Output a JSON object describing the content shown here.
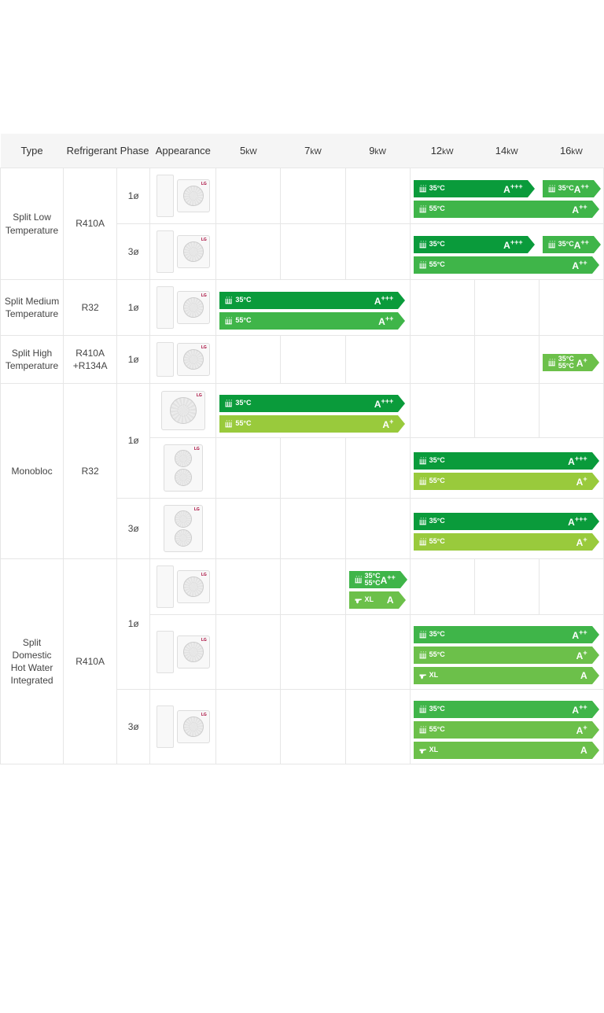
{
  "colors": {
    "header_bg": "#f5f5f5",
    "border": "#e6e6e6",
    "text": "#333333",
    "dark_green": "#0a9b3b",
    "mid_green": "#3fb549",
    "light_green": "#6cc04a",
    "lime": "#99ca3c",
    "lg_logo": "#a50034"
  },
  "headers": {
    "type": "Type",
    "refrigerant": "Refrigerant",
    "phase": "Phase",
    "appearance": "Appearance",
    "kw": [
      "5",
      "7",
      "9",
      "12",
      "14",
      "16"
    ],
    "kw_unit": "kW"
  },
  "types": {
    "split_low": "Split Low Temperature",
    "split_med": "Split Medium Temperature",
    "split_high": "Split High Temperature",
    "monobloc": "Monobloc",
    "split_dhw": "Split Domestic Hot Water Integrated"
  },
  "refrigerants": {
    "r410a": "R410A",
    "r32": "R32",
    "r410a_r134a": "R410A +R134A"
  },
  "phases": {
    "p1": "1ø",
    "p3": "3ø"
  },
  "rows": [
    {
      "id": "r1",
      "type_key": "split_low",
      "ref_key": "r410a",
      "phase_key": "p1",
      "type_rowspan": 2,
      "ref_rowspan": 2,
      "appearance": {
        "indoor": true,
        "outdoor": "normal"
      },
      "bars": [
        {
          "start": 4,
          "span": 2,
          "temps": [
            "35°C"
          ],
          "rating": "A+++",
          "color": "dark_green",
          "icon": "radiator"
        },
        {
          "start": 6,
          "span": 1,
          "temps": [
            "35°C"
          ],
          "rating": "A++",
          "color": "mid_green",
          "icon": "radiator"
        },
        {
          "start": 4,
          "span": 3,
          "temps": [
            "55°C"
          ],
          "rating": "A++",
          "color": "mid_green",
          "icon": "radiator"
        }
      ]
    },
    {
      "id": "r2",
      "phase_key": "p3",
      "appearance": {
        "indoor": true,
        "outdoor": "normal"
      },
      "bars": [
        {
          "start": 4,
          "span": 2,
          "temps": [
            "35°C"
          ],
          "rating": "A+++",
          "color": "dark_green",
          "icon": "radiator"
        },
        {
          "start": 6,
          "span": 1,
          "temps": [
            "35°C"
          ],
          "rating": "A++",
          "color": "mid_green",
          "icon": "radiator"
        },
        {
          "start": 4,
          "span": 3,
          "temps": [
            "55°C"
          ],
          "rating": "A++",
          "color": "mid_green",
          "icon": "radiator"
        }
      ]
    },
    {
      "id": "r3",
      "type_key": "split_med",
      "ref_key": "r32",
      "phase_key": "p1",
      "appearance": {
        "indoor": true,
        "outdoor": "normal"
      },
      "bars": [
        {
          "start": 1,
          "span": 3,
          "temps": [
            "35°C"
          ],
          "rating": "A+++",
          "color": "dark_green",
          "icon": "radiator"
        },
        {
          "start": 1,
          "span": 3,
          "temps": [
            "55°C"
          ],
          "rating": "A++",
          "color": "mid_green",
          "icon": "radiator"
        }
      ]
    },
    {
      "id": "r4",
      "type_key": "split_high",
      "ref_key": "r410a_r134a",
      "phase_key": "p1",
      "appearance": {
        "indoor": true,
        "indoor_short": true,
        "outdoor": "normal"
      },
      "bars": [
        {
          "start": 6,
          "span": 1,
          "temps": [
            "35°C",
            "55°C"
          ],
          "rating": "A+",
          "color": "light_green",
          "icon": "radiator"
        }
      ]
    },
    {
      "id": "r5",
      "type_key": "monobloc",
      "ref_key": "r32",
      "phase_key": "p1",
      "type_rowspan": 3,
      "ref_rowspan": 3,
      "phase_rowspan": 2,
      "appearance": {
        "outdoor": "big"
      },
      "bars": [
        {
          "start": 1,
          "span": 3,
          "temps": [
            "35°C"
          ],
          "rating": "A+++",
          "color": "dark_green",
          "icon": "radiator"
        },
        {
          "start": 1,
          "span": 3,
          "temps": [
            "55°C"
          ],
          "rating": "A+",
          "color": "lime",
          "icon": "radiator"
        }
      ]
    },
    {
      "id": "r6",
      "appearance": {
        "outdoor": "double"
      },
      "bars": [
        {
          "start": 4,
          "span": 3,
          "temps": [
            "35°C"
          ],
          "rating": "A+++",
          "color": "dark_green",
          "icon": "radiator"
        },
        {
          "start": 4,
          "span": 3,
          "temps": [
            "55°C"
          ],
          "rating": "A+",
          "color": "lime",
          "icon": "radiator"
        }
      ]
    },
    {
      "id": "r7",
      "phase_key": "p3",
      "appearance": {
        "outdoor": "double"
      },
      "bars": [
        {
          "start": 4,
          "span": 3,
          "temps": [
            "35°C"
          ],
          "rating": "A+++",
          "color": "dark_green",
          "icon": "radiator"
        },
        {
          "start": 4,
          "span": 3,
          "temps": [
            "55°C"
          ],
          "rating": "A+",
          "color": "lime",
          "icon": "radiator"
        }
      ]
    },
    {
      "id": "r8",
      "type_key": "split_dhw",
      "ref_key": "r410a",
      "phase_key": "p1",
      "type_rowspan": 3,
      "ref_rowspan": 3,
      "phase_rowspan": 2,
      "appearance": {
        "indoor": true,
        "outdoor": "normal"
      },
      "bars": [
        {
          "start": 3,
          "span": 1,
          "temps": [
            "35°C",
            "55°C"
          ],
          "rating": "A++",
          "color": "mid_green",
          "icon": "radiator"
        },
        {
          "start": 3,
          "span": 1,
          "temps": [
            "XL"
          ],
          "rating": "A",
          "color": "light_green",
          "icon": "tap"
        }
      ]
    },
    {
      "id": "r9",
      "appearance": {
        "indoor": true,
        "outdoor": "normal"
      },
      "bars": [
        {
          "start": 4,
          "span": 3,
          "temps": [
            "35°C"
          ],
          "rating": "A++",
          "color": "mid_green",
          "icon": "radiator"
        },
        {
          "start": 4,
          "span": 3,
          "temps": [
            "55°C"
          ],
          "rating": "A+",
          "color": "light_green",
          "icon": "radiator"
        },
        {
          "start": 4,
          "span": 3,
          "temps": [
            "XL"
          ],
          "rating": "A",
          "color": "light_green",
          "icon": "tap"
        }
      ]
    },
    {
      "id": "r10",
      "phase_key": "p3",
      "appearance": {
        "indoor": true,
        "outdoor": "normal"
      },
      "bars": [
        {
          "start": 4,
          "span": 3,
          "temps": [
            "35°C"
          ],
          "rating": "A++",
          "color": "mid_green",
          "icon": "radiator"
        },
        {
          "start": 4,
          "span": 3,
          "temps": [
            "55°C"
          ],
          "rating": "A+",
          "color": "light_green",
          "icon": "radiator"
        },
        {
          "start": 4,
          "span": 3,
          "temps": [
            "XL"
          ],
          "rating": "A",
          "color": "light_green",
          "icon": "tap"
        }
      ]
    }
  ],
  "kw_col_width": 82,
  "logo_text": "LG"
}
